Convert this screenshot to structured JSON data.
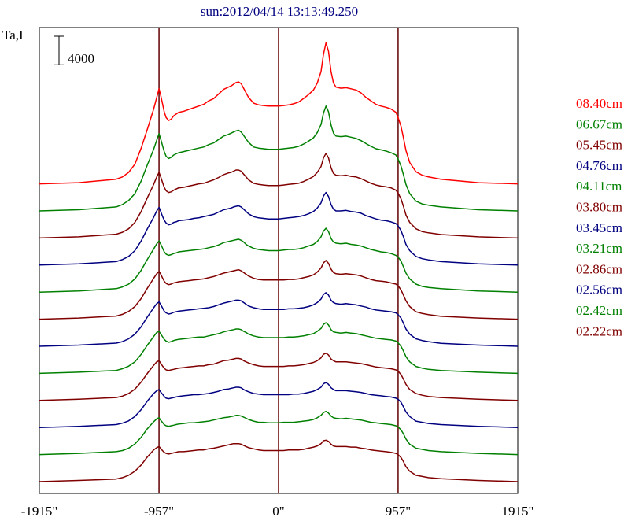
{
  "chart_data": {
    "type": "line",
    "title": "sun:2012/04/14 13:13:49.250",
    "ylabel": "Ta,I",
    "scale_bar_label": "4000",
    "scale_bar_value": 4000,
    "xlim": [
      -1915,
      1915
    ],
    "x_ticks": [
      {
        "value": -1915,
        "label": "-1915\""
      },
      {
        "value": -957,
        "label": "-957\""
      },
      {
        "value": 0,
        "label": "0\""
      },
      {
        "value": 957,
        "label": "957\""
      },
      {
        "value": 1915,
        "label": "1915\""
      }
    ],
    "vertical_lines": [
      -957,
      0,
      957
    ],
    "offset_step": 4700,
    "x": [
      -1915,
      -1600,
      -1300,
      -1250,
      -1200,
      -1150,
      -1100,
      -1050,
      -1000,
      -975,
      -957,
      -945,
      -930,
      -915,
      -900,
      -880,
      -860,
      -840,
      -820,
      -800,
      -760,
      -720,
      -680,
      -640,
      -600,
      -560,
      -520,
      -480,
      -440,
      -400,
      -380,
      -360,
      -340,
      -320,
      -300,
      -280,
      -260,
      -240,
      -200,
      -160,
      -120,
      -80,
      -40,
      0,
      40,
      80,
      120,
      160,
      200,
      240,
      280,
      310,
      340,
      360,
      380,
      400,
      420,
      440,
      460,
      500,
      540,
      580,
      620,
      660,
      700,
      740,
      780,
      820,
      860,
      900,
      940,
      957,
      980,
      1000,
      1020,
      1050,
      1100,
      1150,
      1200,
      1300,
      1600,
      1915
    ],
    "series": [
      {
        "name": "08.40cm",
        "color": "#ff0000",
        "values": [
          0,
          200,
          800,
          1200,
          2000,
          3400,
          6200,
          9500,
          13000,
          15000,
          16500,
          15500,
          14000,
          12500,
          11500,
          11000,
          11200,
          11800,
          12100,
          12400,
          12600,
          12900,
          13200,
          13500,
          13800,
          14400,
          14800,
          15600,
          16400,
          16800,
          17000,
          17300,
          17600,
          17700,
          17400,
          16600,
          15800,
          15000,
          14000,
          13700,
          13600,
          13500,
          13500,
          13500,
          13600,
          13700,
          13900,
          14200,
          14800,
          15500,
          16300,
          17500,
          19500,
          22500,
          24500,
          23000,
          19500,
          17500,
          16800,
          16600,
          16700,
          16500,
          16300,
          15800,
          15000,
          14400,
          13800,
          13500,
          13300,
          13000,
          12400,
          11500,
          10000,
          8000,
          5800,
          3700,
          2100,
          1500,
          1200,
          800,
          200,
          0
        ]
      },
      {
        "name": "06.67cm",
        "color": "#008000",
        "values": [
          0,
          200,
          700,
          1100,
          1800,
          3000,
          5200,
          8000,
          10700,
          12300,
          13400,
          12600,
          11400,
          10300,
          9500,
          9100,
          9300,
          9700,
          9900,
          10100,
          10300,
          10500,
          10700,
          10900,
          11100,
          11500,
          11800,
          12400,
          13000,
          13300,
          13500,
          13700,
          13900,
          14000,
          13700,
          13100,
          12500,
          11900,
          11100,
          10900,
          10800,
          10700,
          10700,
          10700,
          10800,
          10900,
          11000,
          11200,
          11600,
          12100,
          12700,
          13600,
          15000,
          17000,
          18200,
          17200,
          14900,
          13500,
          13000,
          12900,
          13000,
          12800,
          12600,
          12200,
          11700,
          11200,
          10800,
          10600,
          10400,
          10100,
          9700,
          9000,
          7800,
          6300,
          4600,
          3000,
          1700,
          1200,
          1000,
          700,
          200,
          0
        ]
      },
      {
        "name": "05.45cm",
        "color": "#800000",
        "values": [
          0,
          200,
          650,
          1000,
          1600,
          2700,
          4600,
          7000,
          9300,
          10600,
          11400,
          10700,
          9700,
          8800,
          8200,
          7900,
          8000,
          8300,
          8500,
          8700,
          8800,
          9000,
          9200,
          9400,
          9500,
          9800,
          10100,
          10500,
          11000,
          11300,
          11400,
          11600,
          11800,
          11800,
          11600,
          11100,
          10600,
          10100,
          9500,
          9300,
          9200,
          9100,
          9100,
          9100,
          9200,
          9300,
          9400,
          9500,
          9800,
          10200,
          10700,
          11400,
          12400,
          13900,
          14700,
          13900,
          12200,
          11200,
          10900,
          10800,
          10900,
          10700,
          10600,
          10300,
          9900,
          9500,
          9200,
          9000,
          8900,
          8700,
          8300,
          7800,
          6800,
          5500,
          4000,
          2700,
          1600,
          1100,
          900,
          600,
          200,
          0
        ]
      },
      {
        "name": "04.76cm",
        "color": "#000080",
        "values": [
          0,
          200,
          600,
          950,
          1500,
          2500,
          4200,
          6300,
          8300,
          9400,
          10000,
          9400,
          8500,
          7800,
          7300,
          7000,
          7100,
          7400,
          7500,
          7700,
          7800,
          7900,
          8100,
          8200,
          8400,
          8600,
          8800,
          9200,
          9600,
          9800,
          9900,
          10100,
          10200,
          10300,
          10100,
          9700,
          9300,
          8900,
          8400,
          8200,
          8100,
          8000,
          8000,
          8000,
          8100,
          8200,
          8300,
          8400,
          8600,
          8900,
          9300,
          9900,
          10800,
          12000,
          12600,
          11900,
          10500,
          9700,
          9400,
          9400,
          9500,
          9300,
          9200,
          9000,
          8600,
          8300,
          8000,
          7800,
          7700,
          7500,
          7200,
          6800,
          6000,
          4900,
          3600,
          2500,
          1500,
          1100,
          900,
          600,
          200,
          0
        ]
      },
      {
        "name": "04.11cm",
        "color": "#008000",
        "values": [
          0,
          200,
          600,
          900,
          1400,
          2300,
          3800,
          5700,
          7500,
          8400,
          8900,
          8400,
          7700,
          7000,
          6600,
          6400,
          6500,
          6700,
          6800,
          7000,
          7100,
          7200,
          7300,
          7400,
          7500,
          7700,
          7900,
          8200,
          8600,
          8800,
          8900,
          9000,
          9100,
          9200,
          9000,
          8700,
          8300,
          8000,
          7600,
          7400,
          7300,
          7200,
          7200,
          7200,
          7300,
          7400,
          7400,
          7500,
          7700,
          8000,
          8300,
          8800,
          9600,
          10600,
          11100,
          10500,
          9300,
          8700,
          8500,
          8400,
          8500,
          8300,
          8200,
          8000,
          7700,
          7400,
          7200,
          7000,
          6900,
          6700,
          6400,
          6100,
          5400,
          4400,
          3300,
          2300,
          1400,
          1000,
          800,
          600,
          200,
          0
        ]
      },
      {
        "name": "03.80cm",
        "color": "#800000",
        "values": [
          0,
          200,
          550,
          850,
          1350,
          2200,
          3600,
          5400,
          7100,
          7900,
          8300,
          7900,
          7200,
          6600,
          6200,
          6000,
          6100,
          6300,
          6400,
          6500,
          6600,
          6700,
          6800,
          6900,
          7000,
          7200,
          7400,
          7700,
          8000,
          8200,
          8300,
          8400,
          8500,
          8600,
          8400,
          8100,
          7800,
          7500,
          7100,
          6900,
          6800,
          6800,
          6800,
          6800,
          6800,
          6900,
          6900,
          7000,
          7200,
          7400,
          7700,
          8200,
          8900,
          9800,
          10200,
          9700,
          8700,
          8100,
          7900,
          7800,
          7900,
          7800,
          7700,
          7500,
          7200,
          6900,
          6700,
          6600,
          6500,
          6300,
          6100,
          5800,
          5100,
          4200,
          3200,
          2200,
          1300,
          1000,
          800,
          500,
          200,
          0
        ]
      },
      {
        "name": "03.45cm",
        "color": "#000080",
        "values": [
          0,
          200,
          550,
          800,
          1300,
          2100,
          3400,
          5100,
          6700,
          7400,
          7700,
          7300,
          6700,
          6100,
          5800,
          5600,
          5700,
          5900,
          6000,
          6100,
          6200,
          6300,
          6400,
          6500,
          6600,
          6700,
          6900,
          7200,
          7500,
          7700,
          7800,
          7900,
          8000,
          8000,
          7900,
          7600,
          7300,
          7000,
          6700,
          6500,
          6400,
          6400,
          6400,
          6400,
          6400,
          6500,
          6500,
          6600,
          6700,
          6900,
          7200,
          7600,
          8200,
          9000,
          9300,
          8900,
          8000,
          7600,
          7400,
          7300,
          7400,
          7300,
          7200,
          7000,
          6800,
          6500,
          6300,
          6200,
          6100,
          6000,
          5800,
          5500,
          4900,
          4000,
          3000,
          2100,
          1300,
          1000,
          800,
          500,
          200,
          0
        ]
      },
      {
        "name": "03.21cm",
        "color": "#008000",
        "values": [
          0,
          200,
          500,
          800,
          1250,
          2000,
          3300,
          4900,
          6400,
          7100,
          7300,
          6900,
          6400,
          5900,
          5600,
          5400,
          5500,
          5700,
          5800,
          5900,
          6000,
          6100,
          6200,
          6300,
          6300,
          6500,
          6700,
          6900,
          7200,
          7400,
          7500,
          7600,
          7700,
          7700,
          7600,
          7300,
          7100,
          6800,
          6500,
          6300,
          6200,
          6200,
          6200,
          6200,
          6200,
          6300,
          6300,
          6400,
          6500,
          6700,
          6900,
          7300,
          7800,
          8500,
          8800,
          8400,
          7600,
          7200,
          7100,
          7000,
          7100,
          7000,
          6900,
          6700,
          6500,
          6300,
          6100,
          6000,
          5900,
          5800,
          5600,
          5300,
          4700,
          3900,
          2900,
          2000,
          1200,
          900,
          700,
          500,
          200,
          0
        ]
      },
      {
        "name": "02.86cm",
        "color": "#800000",
        "values": [
          0,
          200,
          500,
          750,
          1200,
          1950,
          3200,
          4700,
          6100,
          6700,
          6900,
          6500,
          6000,
          5600,
          5300,
          5200,
          5300,
          5400,
          5500,
          5600,
          5700,
          5800,
          5900,
          6000,
          6000,
          6200,
          6300,
          6600,
          6900,
          7000,
          7100,
          7200,
          7300,
          7300,
          7200,
          6900,
          6700,
          6500,
          6200,
          6000,
          5900,
          5900,
          5900,
          5900,
          5900,
          6000,
          6000,
          6100,
          6200,
          6400,
          6600,
          6900,
          7400,
          8000,
          8200,
          7900,
          7200,
          6900,
          6700,
          6700,
          6700,
          6600,
          6500,
          6400,
          6200,
          6000,
          5800,
          5700,
          5600,
          5500,
          5300,
          5100,
          4500,
          3700,
          2800,
          1900,
          1200,
          900,
          700,
          500,
          200,
          0
        ]
      },
      {
        "name": "02.56cm",
        "color": "#000080",
        "values": [
          0,
          200,
          500,
          750,
          1150,
          1900,
          3100,
          4600,
          5900,
          6400,
          6600,
          6200,
          5800,
          5400,
          5100,
          5000,
          5100,
          5200,
          5300,
          5400,
          5500,
          5600,
          5700,
          5700,
          5800,
          5900,
          6100,
          6300,
          6600,
          6700,
          6800,
          6900,
          7000,
          7000,
          6900,
          6600,
          6400,
          6200,
          5900,
          5800,
          5700,
          5700,
          5700,
          5700,
          5700,
          5700,
          5800,
          5800,
          5900,
          6100,
          6300,
          6600,
          7000,
          7600,
          7800,
          7500,
          6900,
          6600,
          6400,
          6400,
          6400,
          6300,
          6200,
          6100,
          5900,
          5700,
          5600,
          5500,
          5400,
          5300,
          5100,
          4900,
          4400,
          3600,
          2700,
          1900,
          1100,
          900,
          700,
          500,
          200,
          0
        ]
      },
      {
        "name": "02.42cm",
        "color": "#008000",
        "values": [
          0,
          200,
          500,
          700,
          1100,
          1850,
          3000,
          4500,
          5700,
          6200,
          6400,
          6000,
          5600,
          5200,
          5000,
          4900,
          5000,
          5100,
          5200,
          5300,
          5400,
          5500,
          5500,
          5600,
          5700,
          5800,
          6000,
          6200,
          6400,
          6500,
          6600,
          6700,
          6800,
          6800,
          6700,
          6500,
          6300,
          6100,
          5800,
          5600,
          5600,
          5500,
          5500,
          5500,
          5600,
          5600,
          5600,
          5700,
          5800,
          5900,
          6100,
          6400,
          6800,
          7300,
          7500,
          7200,
          6700,
          6400,
          6300,
          6200,
          6300,
          6200,
          6100,
          6000,
          5800,
          5600,
          5500,
          5400,
          5300,
          5200,
          5000,
          4800,
          4300,
          3600,
          2700,
          1800,
          1100,
          900,
          700,
          500,
          200,
          0
        ]
      },
      {
        "name": "02.22cm",
        "color": "#800000",
        "values": [
          0,
          200,
          450,
          700,
          1100,
          1800,
          2900,
          4300,
          5500,
          5900,
          6100,
          5800,
          5400,
          5100,
          4900,
          4800,
          4900,
          5000,
          5100,
          5200,
          5200,
          5300,
          5400,
          5500,
          5500,
          5700,
          5800,
          6000,
          6200,
          6400,
          6500,
          6600,
          6600,
          6600,
          6500,
          6300,
          6100,
          5900,
          5700,
          5500,
          5400,
          5400,
          5400,
          5400,
          5400,
          5500,
          5500,
          5500,
          5600,
          5800,
          6000,
          6200,
          6600,
          7100,
          7200,
          7000,
          6500,
          6200,
          6100,
          6100,
          6100,
          6000,
          6000,
          5800,
          5700,
          5500,
          5400,
          5300,
          5200,
          5100,
          4900,
          4700,
          4200,
          3500,
          2600,
          1800,
          1100,
          900,
          700,
          500,
          200,
          0
        ]
      }
    ]
  }
}
